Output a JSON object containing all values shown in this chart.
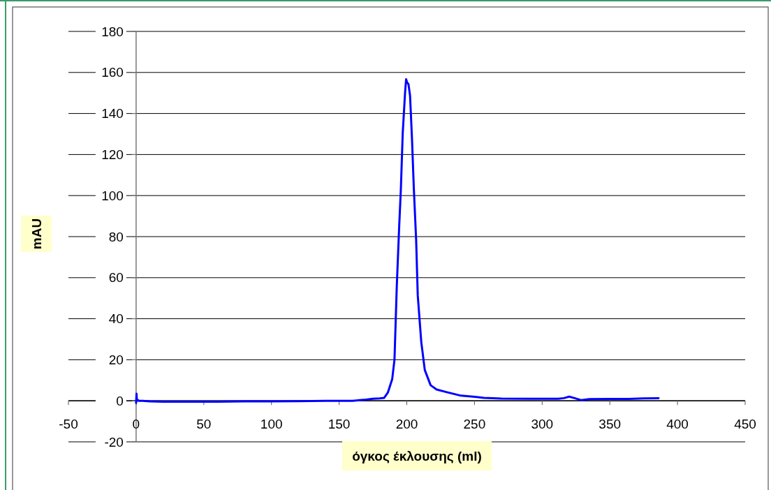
{
  "chart_data": {
    "type": "line",
    "xlabel": "όγκος έκλουσης (ml)",
    "ylabel": "mAU",
    "xlim": [
      -50,
      450
    ],
    "xticks": [
      -50,
      0,
      50,
      100,
      150,
      200,
      250,
      300,
      350,
      400,
      450
    ],
    "ylim": [
      -20,
      180
    ],
    "yticks": [
      -20,
      0,
      20,
      40,
      60,
      80,
      100,
      120,
      140,
      160,
      180
    ],
    "grid": "y",
    "marker": "none",
    "line_style": "solid",
    "series": [
      {
        "color": "#0000ff",
        "x": [
          0,
          0.3,
          0.6,
          1,
          2,
          5,
          10,
          20,
          40,
          60,
          80,
          100,
          120,
          140,
          160,
          165,
          170,
          175,
          180,
          183.2,
          186,
          189.2,
          190.9,
          192.6,
          194.4,
          195.6,
          197,
          198.7,
          199.5,
          200.3,
          201.2,
          202.4,
          203.8,
          205.2,
          206.9,
          208.1,
          210.7,
          213.3,
          217.6,
          222,
          229.6,
          240,
          250.3,
          257,
          270,
          290,
          312,
          316,
          320,
          324,
          329,
          335,
          350,
          364,
          375,
          386
        ],
        "values": [
          -1,
          3.5,
          0,
          0.5,
          0,
          0,
          -0.3,
          -0.4,
          -0.4,
          -0.4,
          -0.3,
          -0.3,
          -0.2,
          0,
          0,
          0.3,
          0.6,
          1,
          1.2,
          1.4,
          4,
          10.5,
          20,
          55.8,
          85.4,
          102.8,
          130.6,
          149.9,
          156.7,
          155,
          154.4,
          148.7,
          128.3,
          103.4,
          78.5,
          51.3,
          28.6,
          15,
          7.6,
          5.5,
          4.2,
          2.5,
          1.9,
          1.4,
          1.1,
          1,
          1,
          1.3,
          2,
          1.3,
          0.3,
          0.8,
          0.9,
          0.9,
          1.2,
          1.3
        ]
      }
    ]
  }
}
